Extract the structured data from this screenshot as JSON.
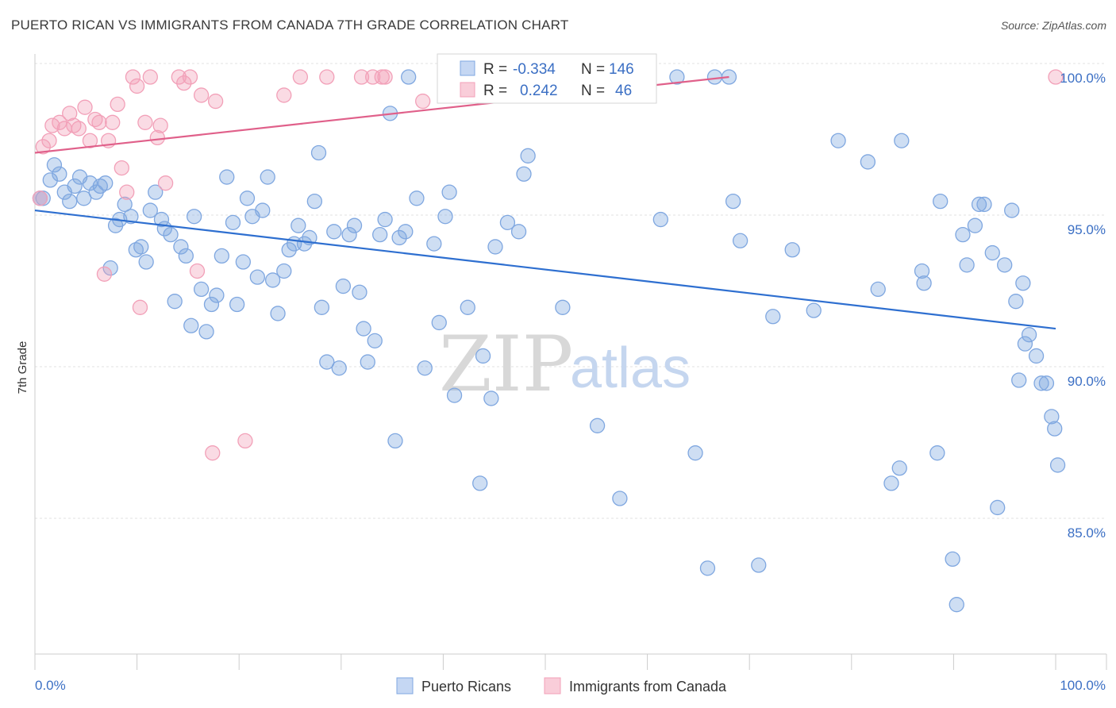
{
  "title": "PUERTO RICAN VS IMMIGRANTS FROM CANADA 7TH GRADE CORRELATION CHART",
  "source": "Source: ZipAtlas.com",
  "watermark": {
    "zip": "ZIP",
    "atlas": "atlas"
  },
  "legend_box": {
    "rows": [
      {
        "r_label": "R =",
        "r_value": "-0.334",
        "n_label": "N =",
        "n_value": "146",
        "color": "#7fa7e0"
      },
      {
        "r_label": "R =",
        "r_value": "0.242",
        "n_label": "N =",
        "n_value": "46",
        "color": "#f2a0b8"
      }
    ]
  },
  "bottom_legend": [
    {
      "label": "Puerto Ricans",
      "color": "#7fa7e0"
    },
    {
      "label": "Immigrants from Canada",
      "color": "#f2a0b8"
    }
  ],
  "chart_data": {
    "type": "scatter",
    "xlabel": "",
    "ylabel": "7th Grade",
    "xlim": [
      0,
      100
    ],
    "ylim": [
      80.3,
      100.6
    ],
    "x_tick_labels": [
      "0.0%",
      "100.0%"
    ],
    "y_ticks": [
      85.0,
      90.0,
      95.0,
      100.0
    ],
    "y_tick_labels": [
      "85.0%",
      "90.0%",
      "95.0%",
      "100.0%"
    ],
    "grid": true,
    "series": [
      {
        "name": "Puerto Ricans",
        "color": "#7fa7e0",
        "line_color": "#2e6fd0",
        "trend": {
          "x": [
            0,
            100
          ],
          "y": [
            95.6,
            91.7
          ]
        },
        "points": [
          [
            0.5,
            96.0
          ],
          [
            0.8,
            96.0
          ],
          [
            1.5,
            96.6
          ],
          [
            1.9,
            97.1
          ],
          [
            2.4,
            96.8
          ],
          [
            2.9,
            96.2
          ],
          [
            3.4,
            95.9
          ],
          [
            3.9,
            96.4
          ],
          [
            4.4,
            96.7
          ],
          [
            4.8,
            96.0
          ],
          [
            5.4,
            96.5
          ],
          [
            6.0,
            96.2
          ],
          [
            6.4,
            96.4
          ],
          [
            6.9,
            96.5
          ],
          [
            7.4,
            93.7
          ],
          [
            7.9,
            95.1
          ],
          [
            8.3,
            95.3
          ],
          [
            8.8,
            95.8
          ],
          [
            9.4,
            95.4
          ],
          [
            9.9,
            94.3
          ],
          [
            10.4,
            94.4
          ],
          [
            10.9,
            93.9
          ],
          [
            11.3,
            95.6
          ],
          [
            11.8,
            96.2
          ],
          [
            12.4,
            95.3
          ],
          [
            12.7,
            95.0
          ],
          [
            13.3,
            94.8
          ],
          [
            13.7,
            92.6
          ],
          [
            14.3,
            94.4
          ],
          [
            14.8,
            94.1
          ],
          [
            15.3,
            91.8
          ],
          [
            15.6,
            95.4
          ],
          [
            16.3,
            93.0
          ],
          [
            16.8,
            91.6
          ],
          [
            17.3,
            92.5
          ],
          [
            17.8,
            92.8
          ],
          [
            18.3,
            94.1
          ],
          [
            18.8,
            96.7
          ],
          [
            19.4,
            95.2
          ],
          [
            19.8,
            92.5
          ],
          [
            20.4,
            93.9
          ],
          [
            20.8,
            96.0
          ],
          [
            21.3,
            95.4
          ],
          [
            21.8,
            93.4
          ],
          [
            22.3,
            95.6
          ],
          [
            22.8,
            96.7
          ],
          [
            23.3,
            93.3
          ],
          [
            23.8,
            92.2
          ],
          [
            24.4,
            93.6
          ],
          [
            24.9,
            94.3
          ],
          [
            25.4,
            94.5
          ],
          [
            25.8,
            95.1
          ],
          [
            26.4,
            94.5
          ],
          [
            26.9,
            94.7
          ],
          [
            27.4,
            95.9
          ],
          [
            27.8,
            97.5
          ],
          [
            28.1,
            92.4
          ],
          [
            28.6,
            90.6
          ],
          [
            29.3,
            94.9
          ],
          [
            29.8,
            90.4
          ],
          [
            30.2,
            93.1
          ],
          [
            30.8,
            94.8
          ],
          [
            31.3,
            95.1
          ],
          [
            31.8,
            92.9
          ],
          [
            32.2,
            91.7
          ],
          [
            32.6,
            90.6
          ],
          [
            33.3,
            91.3
          ],
          [
            33.8,
            94.8
          ],
          [
            34.3,
            95.3
          ],
          [
            34.8,
            98.8
          ],
          [
            35.3,
            88.0
          ],
          [
            35.7,
            94.7
          ],
          [
            36.3,
            94.9
          ],
          [
            36.6,
            100.0
          ],
          [
            37.4,
            96.0
          ],
          [
            38.2,
            90.4
          ],
          [
            39.1,
            94.5
          ],
          [
            39.6,
            91.9
          ],
          [
            40.2,
            95.4
          ],
          [
            40.6,
            96.2
          ],
          [
            41.1,
            89.5
          ],
          [
            42.4,
            92.4
          ],
          [
            43.6,
            86.6
          ],
          [
            43.9,
            90.8
          ],
          [
            44.7,
            89.4
          ],
          [
            45.1,
            94.4
          ],
          [
            46.3,
            95.2
          ],
          [
            47.1,
            100.0
          ],
          [
            47.4,
            94.9
          ],
          [
            47.9,
            96.8
          ],
          [
            48.3,
            97.4
          ],
          [
            49.7,
            100.0
          ],
          [
            51.7,
            92.4
          ],
          [
            52.0,
            100.0
          ],
          [
            53.9,
            100.0
          ],
          [
            55.1,
            88.5
          ],
          [
            56.7,
            100.0
          ],
          [
            57.3,
            86.1
          ],
          [
            58.3,
            100.0
          ],
          [
            59.0,
            100.0
          ],
          [
            61.3,
            95.3
          ],
          [
            62.9,
            100.0
          ],
          [
            64.7,
            87.6
          ],
          [
            65.9,
            83.8
          ],
          [
            66.6,
            100.0
          ],
          [
            68.0,
            100.0
          ],
          [
            68.4,
            95.9
          ],
          [
            69.1,
            94.6
          ],
          [
            70.9,
            83.9
          ],
          [
            72.3,
            92.1
          ],
          [
            74.2,
            94.3
          ],
          [
            76.3,
            92.3
          ],
          [
            78.7,
            97.9
          ],
          [
            81.6,
            97.2
          ],
          [
            82.6,
            93.0
          ],
          [
            83.9,
            86.6
          ],
          [
            84.7,
            87.1
          ],
          [
            84.9,
            97.9
          ],
          [
            86.9,
            93.6
          ],
          [
            87.1,
            93.2
          ],
          [
            88.4,
            87.6
          ],
          [
            88.7,
            95.9
          ],
          [
            89.9,
            84.1
          ],
          [
            90.3,
            82.6
          ],
          [
            90.9,
            94.8
          ],
          [
            91.3,
            93.8
          ],
          [
            92.1,
            95.1
          ],
          [
            92.5,
            95.8
          ],
          [
            93.0,
            95.8
          ],
          [
            93.8,
            94.2
          ],
          [
            94.3,
            85.8
          ],
          [
            95.0,
            93.8
          ],
          [
            95.7,
            95.6
          ],
          [
            96.1,
            92.6
          ],
          [
            96.4,
            90.0
          ],
          [
            97.0,
            91.2
          ],
          [
            97.4,
            91.5
          ],
          [
            98.1,
            90.8
          ],
          [
            98.6,
            89.9
          ],
          [
            99.1,
            89.9
          ],
          [
            99.6,
            88.8
          ],
          [
            99.9,
            88.4
          ],
          [
            100.2,
            87.2
          ],
          [
            96.8,
            93.2
          ]
        ]
      },
      {
        "name": "Immigrants from Canada",
        "color": "#f2a0b8",
        "line_color": "#e0608a",
        "trend": {
          "x": [
            0,
            68
          ],
          "y": [
            97.5,
            100.0
          ]
        },
        "points": [
          [
            0.5,
            96.0
          ],
          [
            0.8,
            97.7
          ],
          [
            1.4,
            97.9
          ],
          [
            1.7,
            98.4
          ],
          [
            2.4,
            98.5
          ],
          [
            2.9,
            98.3
          ],
          [
            3.4,
            98.8
          ],
          [
            3.8,
            98.4
          ],
          [
            4.3,
            98.3
          ],
          [
            4.9,
            99.0
          ],
          [
            5.4,
            97.9
          ],
          [
            5.9,
            98.6
          ],
          [
            6.3,
            98.5
          ],
          [
            6.8,
            93.5
          ],
          [
            7.2,
            97.9
          ],
          [
            7.6,
            98.5
          ],
          [
            8.1,
            99.1
          ],
          [
            8.5,
            97.0
          ],
          [
            9.0,
            96.2
          ],
          [
            9.6,
            100.0
          ],
          [
            10.0,
            99.7
          ],
          [
            10.3,
            92.4
          ],
          [
            10.8,
            98.5
          ],
          [
            11.3,
            100.0
          ],
          [
            12.0,
            98.0
          ],
          [
            12.3,
            98.4
          ],
          [
            12.8,
            96.5
          ],
          [
            14.1,
            100.0
          ],
          [
            14.6,
            99.8
          ],
          [
            15.2,
            100.0
          ],
          [
            15.9,
            93.6
          ],
          [
            16.3,
            99.4
          ],
          [
            17.4,
            87.6
          ],
          [
            17.7,
            99.2
          ],
          [
            20.6,
            88.0
          ],
          [
            24.4,
            99.4
          ],
          [
            26.0,
            100.0
          ],
          [
            28.6,
            100.0
          ],
          [
            32.0,
            100.0
          ],
          [
            33.1,
            100.0
          ],
          [
            34.0,
            100.0
          ],
          [
            34.3,
            100.0
          ],
          [
            38.0,
            99.2
          ],
          [
            40.5,
            100.0
          ],
          [
            47.0,
            100.0
          ],
          [
            100.0,
            100.0
          ]
        ]
      }
    ]
  }
}
